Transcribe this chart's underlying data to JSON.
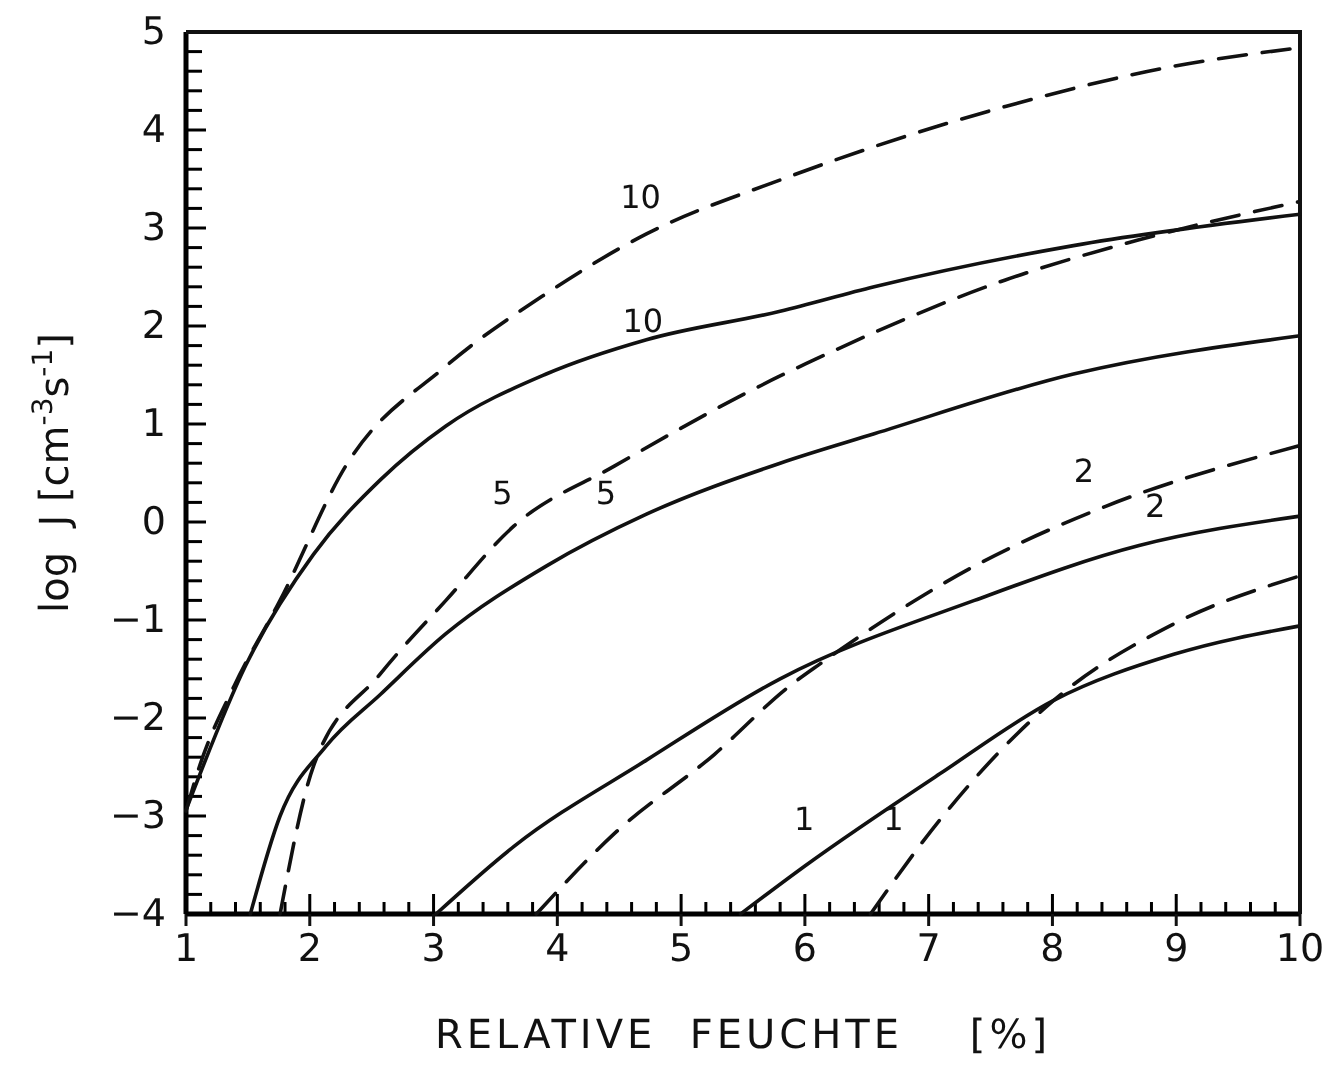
{
  "chart_data": {
    "type": "line",
    "xlabel": "RELATIVE  FEUCHTE    [%]",
    "ylabel": "log  J [cm$^{-3}$s$^{-1}$]",
    "xlim": [
      1,
      10
    ],
    "ylim": [
      -4,
      5
    ],
    "xticks": [
      1,
      {
        "value": 1.2,
        "label": null
      },
      {
        "value": 1.4,
        "label": null
      },
      {
        "value": 1.6,
        "label": null
      },
      {
        "value": 1.8,
        "label": null
      },
      2,
      {
        "value": 2.2,
        "label": null
      },
      {
        "value": 2.4,
        "label": null
      },
      {
        "value": 2.6,
        "label": null
      },
      {
        "value": 2.8,
        "label": null
      },
      3,
      {
        "value": 3.2,
        "label": null
      },
      {
        "value": 3.4,
        "label": null
      },
      {
        "value": 3.6,
        "label": null
      },
      {
        "value": 3.8,
        "label": null
      },
      4,
      {
        "value": 4.2,
        "label": null
      },
      {
        "value": 4.4,
        "label": null
      },
      {
        "value": 4.6,
        "label": null
      },
      {
        "value": 4.8,
        "label": null
      },
      5,
      {
        "value": 5.2,
        "label": null
      },
      {
        "value": 5.4,
        "label": null
      },
      {
        "value": 5.6,
        "label": null
      },
      {
        "value": 5.8,
        "label": null
      },
      6,
      {
        "value": 6.2,
        "label": null
      },
      {
        "value": 6.4,
        "label": null
      },
      {
        "value": 6.6,
        "label": null
      },
      {
        "value": 6.8,
        "label": null
      },
      7,
      {
        "value": 7.2,
        "label": null
      },
      {
        "value": 7.4,
        "label": null
      },
      {
        "value": 7.6,
        "label": null
      },
      {
        "value": 7.8,
        "label": null
      },
      8,
      {
        "value": 8.2,
        "label": null
      },
      {
        "value": 8.4,
        "label": null
      },
      {
        "value": 8.6,
        "label": null
      },
      {
        "value": 8.8,
        "label": null
      },
      9,
      {
        "value": 9.2,
        "label": null
      },
      {
        "value": 9.4,
        "label": null
      },
      {
        "value": 9.6,
        "label": null
      },
      {
        "value": 9.8,
        "label": null
      },
      10
    ],
    "yticks": [
      -4,
      {
        "value": -3.8,
        "label": null
      },
      {
        "value": -3.6,
        "label": null
      },
      {
        "value": -3.4,
        "label": null
      },
      {
        "value": -3.2,
        "label": null
      },
      -3,
      {
        "value": -2.8,
        "label": null
      },
      {
        "value": -2.6,
        "label": null
      },
      {
        "value": -2.4,
        "label": null
      },
      {
        "value": -2.2,
        "label": null
      },
      -2,
      {
        "value": -1.8,
        "label": null
      },
      {
        "value": -1.6,
        "label": null
      },
      {
        "value": -1.4,
        "label": null
      },
      {
        "value": -1.2,
        "label": null
      },
      -1,
      {
        "value": -0.8,
        "label": null
      },
      {
        "value": -0.6,
        "label": null
      },
      {
        "value": -0.4,
        "label": null
      },
      {
        "value": -0.2,
        "label": null
      },
      0,
      {
        "value": 0.2,
        "label": null
      },
      {
        "value": 0.4,
        "label": null
      },
      {
        "value": 0.6,
        "label": null
      },
      {
        "value": 0.8,
        "label": null
      },
      1,
      {
        "value": 1.2,
        "label": null
      },
      {
        "value": 1.4,
        "label": null
      },
      {
        "value": 1.6,
        "label": null
      },
      {
        "value": 1.8,
        "label": null
      },
      2,
      {
        "value": 2.2,
        "label": null
      },
      {
        "value": 2.4,
        "label": null
      },
      {
        "value": 2.6,
        "label": null
      },
      {
        "value": 2.8,
        "label": null
      },
      3,
      {
        "value": 3.2,
        "label": null
      },
      {
        "value": 3.4,
        "label": null
      },
      {
        "value": 3.6,
        "label": null
      },
      {
        "value": 3.8,
        "label": null
      },
      4,
      {
        "value": 4.2,
        "label": null
      },
      {
        "value": 4.4,
        "label": null
      },
      {
        "value": 4.6,
        "label": null
      },
      {
        "value": 4.8,
        "label": null
      },
      5
    ],
    "grid": false,
    "marker": "none",
    "series": [
      {
        "color": "#111111",
        "line_style": "solid",
        "x": [
          1,
          1.48,
          2.03,
          2.57,
          3.1,
          3.91,
          4.72,
          5.8,
          6.56,
          8.17,
          10
        ],
        "values": [
          -2.94,
          -1.47,
          -0.33,
          0.43,
          0.98,
          1.51,
          1.86,
          2.15,
          2.4,
          2.82,
          3.14
        ]
      },
      {
        "color": "#111111",
        "line_style": "dashed",
        "x": [
          1,
          1.11,
          1.39,
          1.76,
          2.29,
          3.1,
          3.91,
          4.72,
          5.8,
          7.62,
          8.98,
          10
        ],
        "values": [
          -2.95,
          -2.49,
          -1.67,
          -0.8,
          0.57,
          1.59,
          2.33,
          2.94,
          3.49,
          4.24,
          4.65,
          4.84
        ]
      },
      {
        "color": "#111111",
        "line_style": "solid",
        "x": [
          1.52,
          1.76,
          2.13,
          2.57,
          3.1,
          3.91,
          4.72,
          5.8,
          6.56,
          8.17,
          10
        ],
        "values": [
          -4,
          -3.0,
          -2.29,
          -1.76,
          -1.14,
          -0.45,
          0.08,
          0.6,
          0.9,
          1.51,
          1.9
        ]
      },
      {
        "color": "#111111",
        "line_style": "dashed",
        "x": [
          1.76,
          2.03,
          2.57,
          3.1,
          3.65,
          4.46,
          5.8,
          6.0,
          7.62,
          8.7,
          10
        ],
        "values": [
          -4,
          -2.49,
          -1.55,
          -0.8,
          -0.04,
          0.57,
          1.49,
          1.61,
          2.47,
          2.88,
          3.27
        ]
      },
      {
        "color": "#111111",
        "line_style": "solid",
        "x": [
          3.02,
          3.65,
          4.72,
          5.8,
          7.37,
          8.7,
          10
        ],
        "values": [
          -4,
          -3.31,
          -2.43,
          -1.6,
          -0.8,
          -0.24,
          0.06
        ]
      },
      {
        "color": "#111111",
        "line_style": "dashed",
        "x": [
          3.83,
          4.46,
          5.27,
          5.88,
          6.12,
          7.37,
          8.43,
          10
        ],
        "values": [
          -4,
          -3.18,
          -2.37,
          -1.67,
          -1.45,
          -0.45,
          0.16,
          0.78
        ]
      },
      {
        "color": "#111111",
        "line_style": "solid",
        "x": [
          5.48,
          6.0,
          7.09,
          8.01,
          8.98,
          10
        ],
        "values": [
          -4,
          -3.51,
          -2.57,
          -1.82,
          -1.35,
          -1.06
        ]
      },
      {
        "color": "#111111",
        "line_style": "dashed",
        "x": [
          6.53,
          7.09,
          8.01,
          8.98,
          10
        ],
        "values": [
          -4,
          -3.04,
          -1.82,
          -1.04,
          -0.55
        ]
      }
    ],
    "annotations": [
      "10",
      "10",
      "5",
      "5",
      "2",
      "2",
      "1",
      "1"
    ]
  }
}
